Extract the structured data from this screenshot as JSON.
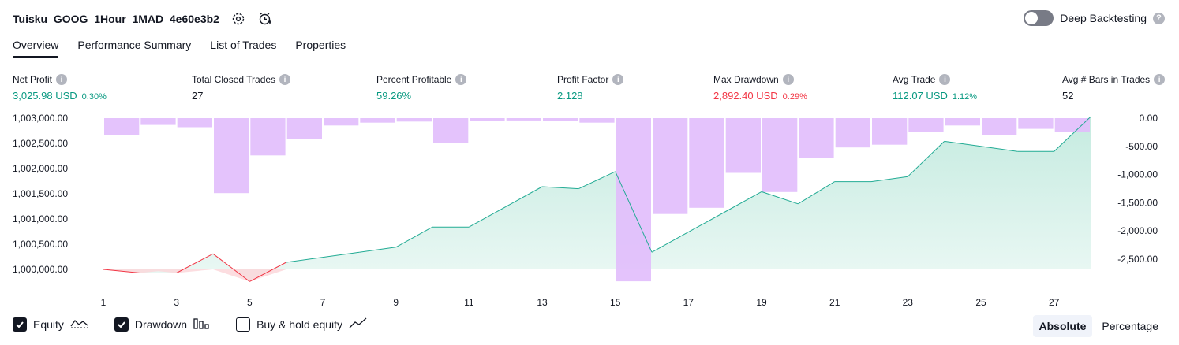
{
  "header": {
    "title": "Tuisku_GOOG_1Hour_1MAD_4e60e3b2"
  },
  "deep_backtesting": {
    "label": "Deep Backtesting",
    "help": "?"
  },
  "tabs": [
    {
      "label": "Overview"
    },
    {
      "label": "Performance Summary"
    },
    {
      "label": "List of Trades"
    },
    {
      "label": "Properties"
    }
  ],
  "info_glyph": "i",
  "metrics": [
    {
      "label": "Net Profit",
      "value": "3,025.98 USD",
      "pct": "0.30%",
      "tone": "green"
    },
    {
      "label": "Total Closed Trades",
      "value": "27",
      "pct": "",
      "tone": "dark"
    },
    {
      "label": "Percent Profitable",
      "value": "59.26%",
      "pct": "",
      "tone": "green"
    },
    {
      "label": "Profit Factor",
      "value": "2.128",
      "pct": "",
      "tone": "green"
    },
    {
      "label": "Max Drawdown",
      "value": "2,892.40 USD",
      "pct": "0.29%",
      "tone": "red"
    },
    {
      "label": "Avg Trade",
      "value": "112.07 USD",
      "pct": "1.12%",
      "tone": "green"
    },
    {
      "label": "Avg # Bars in Trades",
      "value": "52",
      "pct": "",
      "tone": "dark"
    }
  ],
  "chart_data": {
    "type": "line",
    "x": [
      1,
      2,
      3,
      4,
      5,
      6,
      7,
      8,
      9,
      10,
      11,
      12,
      13,
      14,
      15,
      16,
      17,
      18,
      19,
      20,
      21,
      22,
      23,
      24,
      25,
      26,
      27,
      28
    ],
    "x_ticks": [
      "1",
      "3",
      "5",
      "7",
      "9",
      "11",
      "13",
      "15",
      "17",
      "19",
      "21",
      "23",
      "25",
      "27"
    ],
    "left_ticks": [
      "1,003,000.00",
      "1,002,500.00",
      "1,002,000.00",
      "1,001,500.00",
      "1,001,000.00",
      "1,000,500.00",
      "1,000,000.00"
    ],
    "right_ticks": [
      "0.00",
      "-500.00",
      "-1,000.00",
      "-1,500.00",
      "-2,000.00",
      "-2,500.00"
    ],
    "equity_baseline": 1000000,
    "ylim_left": [
      999800,
      1003000
    ],
    "ylim_right": [
      -2892.4,
      0
    ],
    "series": [
      {
        "name": "Equity",
        "values": [
          1000000,
          999930,
          999930,
          1000310,
          999760,
          1000140,
          1000240,
          1000340,
          1000440,
          1000840,
          1000840,
          1001240,
          1001640,
          1001600,
          1001940,
          1000340,
          1000740,
          1001140,
          1001540,
          1001300,
          1001740,
          1001740,
          1001840,
          1002540,
          1002440,
          1002340,
          1002340,
          1003026
        ]
      },
      {
        "name": "Drawdown",
        "values": [
          0,
          -300,
          -120,
          -160,
          -1330,
          -660,
          -370,
          -130,
          -80,
          -60,
          -440,
          -50,
          -40,
          -50,
          -80,
          -2892.4,
          -1700,
          -1590,
          -970,
          -1310,
          -700,
          -520,
          -470,
          -250,
          -130,
          -300,
          -190,
          -250
        ]
      }
    ],
    "colors": {
      "equity_line": "#22ab94",
      "equity_fill": "#c5ebe0",
      "negative_line": "#f23645",
      "drawdown": "#e1bdfc"
    },
    "grid": false
  },
  "legend": [
    {
      "label": "Equity",
      "checked": true,
      "icon": "equity-line-icon"
    },
    {
      "label": "Drawdown",
      "checked": true,
      "icon": "drawdown-bars-icon"
    },
    {
      "label": "Buy & hold equity",
      "checked": false,
      "icon": "buy-hold-line-icon"
    }
  ],
  "mode": {
    "options": [
      "Absolute",
      "Percentage"
    ],
    "selected": "Absolute"
  }
}
